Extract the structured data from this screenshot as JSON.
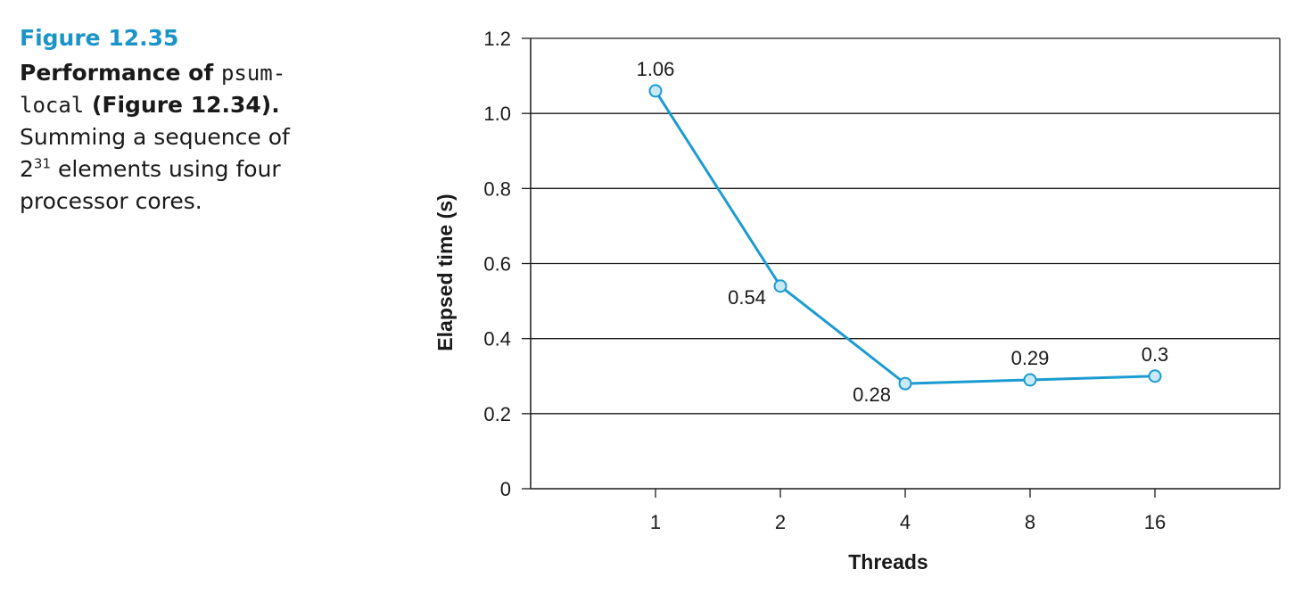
{
  "caption": {
    "figure_number": "Figure 12.35",
    "title_prefix": "Performance of ",
    "title_code_1": "psum-",
    "title_code_2": "local",
    "title_suffix": " (Figure 12.34).",
    "desc_line1": "Summing a sequence of",
    "desc_base": "2",
    "desc_exponent": "31",
    "desc_line2_rest": " elements using four",
    "desc_line3": "processor cores."
  },
  "chart_data": {
    "type": "line",
    "xlabel": "Threads",
    "ylabel": "Elapsed time (s)",
    "categories": [
      "1",
      "2",
      "4",
      "8",
      "16"
    ],
    "series": [
      {
        "values": [
          1.06,
          0.54,
          0.28,
          0.29,
          0.3
        ]
      }
    ],
    "data_labels": [
      "1.06",
      "0.54",
      "0.28",
      "0.29",
      "0.3"
    ],
    "y_ticks": [
      {
        "value": 0,
        "label": "0"
      },
      {
        "value": 0.2,
        "label": "0.2"
      },
      {
        "value": 0.4,
        "label": "0.4"
      },
      {
        "value": 0.6,
        "label": "0.6"
      },
      {
        "value": 0.8,
        "label": "0.8"
      },
      {
        "value": 1.0,
        "label": "1.0"
      },
      {
        "value": 1.2,
        "label": "1.2"
      }
    ],
    "ylim": [
      0,
      1.2
    ],
    "grid": true,
    "line_color": "#1b9bd1",
    "marker_fill": "#c9e9f6"
  }
}
